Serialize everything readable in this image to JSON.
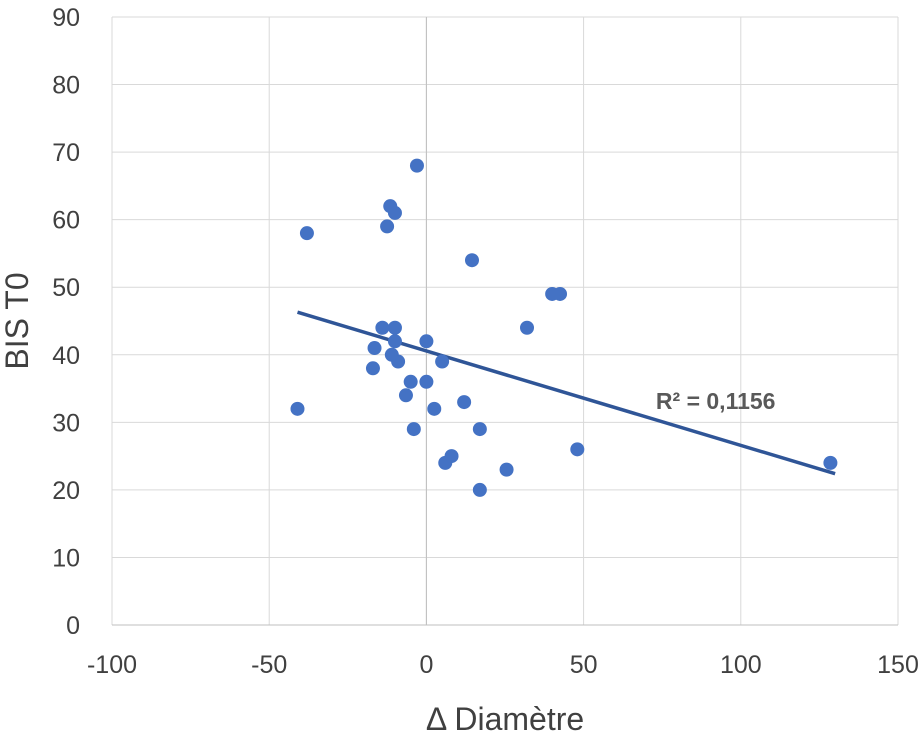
{
  "chart_data": {
    "type": "scatter",
    "title": "",
    "xlabel": "Δ Diamètre",
    "ylabel": "BIS T0",
    "xlim": [
      -100,
      150
    ],
    "ylim": [
      0,
      90
    ],
    "x_ticks": [
      "-100",
      "-50",
      "0",
      "50",
      "100",
      "150"
    ],
    "y_ticks": [
      "0",
      "10",
      "20",
      "30",
      "40",
      "50",
      "60",
      "70",
      "80",
      "90"
    ],
    "grid": true,
    "legend": "none",
    "series": [
      {
        "color": "#4472C4",
        "points": [
          {
            "x": -41,
            "y": 32
          },
          {
            "x": -38,
            "y": 58
          },
          {
            "x": -17,
            "y": 38
          },
          {
            "x": -16.5,
            "y": 41
          },
          {
            "x": -14,
            "y": 44
          },
          {
            "x": -12.5,
            "y": 59
          },
          {
            "x": -11.5,
            "y": 62
          },
          {
            "x": -11,
            "y": 40
          },
          {
            "x": -10,
            "y": 44
          },
          {
            "x": -10,
            "y": 42
          },
          {
            "x": -10,
            "y": 61
          },
          {
            "x": -9,
            "y": 39
          },
          {
            "x": -6.5,
            "y": 34
          },
          {
            "x": -5,
            "y": 36
          },
          {
            "x": -4,
            "y": 29
          },
          {
            "x": -3,
            "y": 68
          },
          {
            "x": 0,
            "y": 42
          },
          {
            "x": 0,
            "y": 36
          },
          {
            "x": 2.5,
            "y": 32
          },
          {
            "x": 5,
            "y": 39
          },
          {
            "x": 6,
            "y": 24
          },
          {
            "x": 8,
            "y": 25
          },
          {
            "x": 12,
            "y": 33
          },
          {
            "x": 14.5,
            "y": 54
          },
          {
            "x": 17,
            "y": 20
          },
          {
            "x": 17,
            "y": 29
          },
          {
            "x": 25.5,
            "y": 23
          },
          {
            "x": 32,
            "y": 44
          },
          {
            "x": 40,
            "y": 49
          },
          {
            "x": 42.5,
            "y": 49
          },
          {
            "x": 48,
            "y": 26
          },
          {
            "x": 128.5,
            "y": 24
          }
        ]
      }
    ],
    "trendline": {
      "type": "linear",
      "color": "#2F5597",
      "x_start": -41,
      "y_start": 46.3,
      "x_end": 130,
      "y_end": 22.4,
      "label": "R² = 0,1156",
      "label_x": 73,
      "label_y": 32
    }
  }
}
